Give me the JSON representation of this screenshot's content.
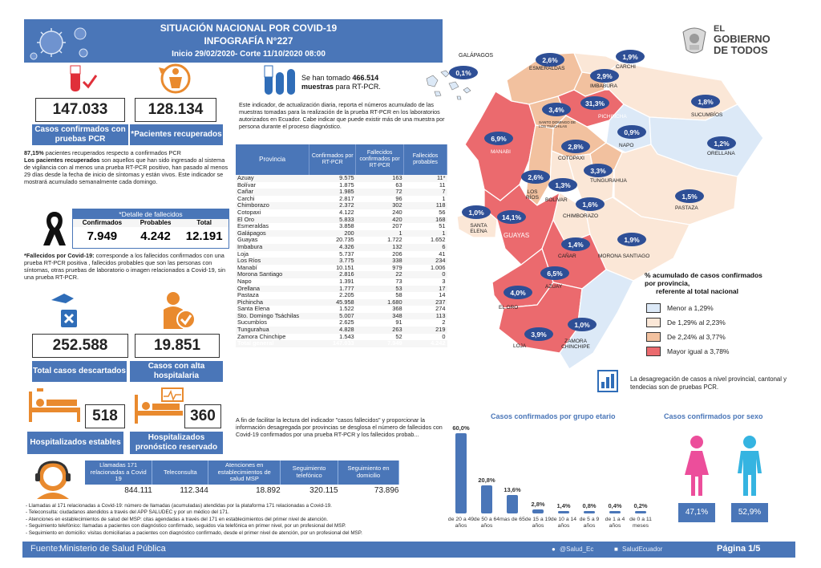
{
  "header": {
    "title": "SITUACIÓN NACIONAL POR  COVID-19",
    "subtitle": "INFOGRAFÍA N°227",
    "date_range": "Inicio 29/02/2020- Corte 11/10/2020 08:00"
  },
  "gov_logo": {
    "line1": "EL",
    "line2": "GOBIERNO",
    "line3": "DE TODOS"
  },
  "stats": {
    "confirmed": {
      "value": "147.033",
      "label": "Casos confirmados con pruebas PCR"
    },
    "recovered": {
      "value": "128.134",
      "label": "*Pacientes recuperados"
    },
    "recovered_pct_text": "87,15%",
    "recovered_pct_rest": " pacientes recuperados respecto a confirmados PCR",
    "recovered_def_bold": "Los pacientes recuperados",
    "recovered_def": " son aquellos que han sido ingresado al sistema de vigilancia con al menos una prueba RT-PCR positivo, han pasado al menos 29 días desde la fecha de inicio de síntomas y están vivos. Este indicador se mostrará acumulado semanalmente cada domingo.",
    "samples_prefix": "Se han tomado ",
    "samples_value": "466.514",
    "samples_bold2": "muestras",
    "samples_suffix": " para RT-PCR.",
    "samples_note": "Este indicador, de actualización diaria, reporta el números acumulado de las muestras tomadas para la realización de la prueba RT-PCR en los laboratorios autorizados en Ecuador. Cabe indicar que puede existir más de una muestra por persona durante el proceso diagnóstico.",
    "discarded": {
      "value": "252.588",
      "label": "Total casos descartados"
    },
    "discharged": {
      "value": "19.851",
      "label": "Casos con alta hospitalaria"
    },
    "hosp_stable": {
      "value": "518",
      "label": "Hospitalizados estables"
    },
    "hosp_reserved": {
      "value": "360",
      "label": "Hospitalizados pronóstico reservado"
    }
  },
  "deaths": {
    "title": "*Detalle de fallecidos",
    "headers": [
      "Confirmados",
      "Probables",
      "Total"
    ],
    "values": [
      "7.949",
      "4.242",
      "12.191"
    ],
    "note_bold": "*Fallecidos por Covid-19:",
    "note": " corresponde a los fallecidos confirmados con una prueba RT-PCR positiva , fallecidos probables que son las personas con síntomas, otras pruebas de laboratorio o imagen relacionados a Covid-19, sin una prueba RT-PCR."
  },
  "province_table": {
    "headers": [
      "Provincia",
      "Confirmados por RT-PCR",
      "Fallecidos confirmados por RT-PCR",
      "Fallecidos probables"
    ],
    "rows": [
      [
        "Azuay",
        "9.575",
        "163",
        "11*"
      ],
      [
        "Bolívar",
        "1.875",
        "63",
        "11"
      ],
      [
        "Cañar",
        "1.985",
        "72",
        "7"
      ],
      [
        "Carchi",
        "2.817",
        "96",
        "1"
      ],
      [
        "Chimborazo",
        "2.372",
        "302",
        "118"
      ],
      [
        "Cotopaxi",
        "4.122",
        "240",
        "56"
      ],
      [
        "El Oro",
        "5.833",
        "420",
        "168"
      ],
      [
        "Esmeraldas",
        "3.858",
        "207",
        "51"
      ],
      [
        "Galápagos",
        "200",
        "1",
        "1"
      ],
      [
        "Guayas",
        "20.735",
        "1.722",
        "1.652"
      ],
      [
        "Imbabura",
        "4.326",
        "132",
        "6"
      ],
      [
        "Loja",
        "5.737",
        "206",
        "41"
      ],
      [
        "Los Ríos",
        "3.775",
        "338",
        "234"
      ],
      [
        "Manabí",
        "10.151",
        "979",
        "1.006"
      ],
      [
        "Morona Santiago",
        "2.816",
        "22",
        "0"
      ],
      [
        "Napo",
        "1.391",
        "73",
        "3"
      ],
      [
        "Orellana",
        "1.777",
        "53",
        "17"
      ],
      [
        "Pastaza",
        "2.205",
        "58",
        "14"
      ],
      [
        "Pichincha",
        "45.958",
        "1.680",
        "237"
      ],
      [
        "Santa Elena",
        "1.522",
        "368",
        "274"
      ],
      [
        "Sto. Domingo Tsáchilas",
        "5.007",
        "348",
        "113"
      ],
      [
        "Sucumbíos",
        "2.625",
        "91",
        "2"
      ],
      [
        "Tungurahua",
        "4.828",
        "263",
        "219"
      ],
      [
        "Zamora Chinchipe",
        "1.543",
        "52",
        "0"
      ]
    ],
    "total": [
      "Total general",
      "147.033",
      "7.949",
      "4.242"
    ],
    "footnote": "A fin de facilitar la lectura del indicador \"casos fallecidos\" y proporcionar la información desagregada por provincias se desglosa el número de fallecidos con Covid-19 confirmados por una prueba RT-PCR y los fallecidos probab..."
  },
  "map": {
    "galapagos_label": "GALÁPAGOS",
    "provinces": [
      {
        "name": "ESMERALDAS",
        "pct": "2,6%"
      },
      {
        "name": "CARCHI",
        "pct": "1,9%"
      },
      {
        "name": "IMBABURA",
        "pct": "2,9%"
      },
      {
        "name": "SUCUMBÍOS",
        "pct": "1,8%"
      },
      {
        "name": "PICHINCHA",
        "pct": "31,3%"
      },
      {
        "name": "SANTO DOMINGO DE LOS TSÁCHILAS",
        "pct": "3,4%"
      },
      {
        "name": "NAPO",
        "pct": "0,9%"
      },
      {
        "name": "ORELLANA",
        "pct": "1,2%"
      },
      {
        "name": "MANABI",
        "pct": "6,9%"
      },
      {
        "name": "COTOPAXI",
        "pct": "2,8%"
      },
      {
        "name": "TUNGURAHUA",
        "pct": "3,3%"
      },
      {
        "name": "LOS RÍOS",
        "pct": "2,6%"
      },
      {
        "name": "BOLÍVAR",
        "pct": "1,3%"
      },
      {
        "name": "CHIMBORAZO",
        "pct": "1,6%"
      },
      {
        "name": "PASTAZA",
        "pct": "1,5%"
      },
      {
        "name": "SANTA ELENA",
        "pct": "1,0%"
      },
      {
        "name": "GUAYAS",
        "pct": "14,1%"
      },
      {
        "name": "CAÑAR",
        "pct": "1,4%"
      },
      {
        "name": "MORONA SANTIAGO",
        "pct": "1,9%"
      },
      {
        "name": "AZUAY",
        "pct": "6,5%"
      },
      {
        "name": "EL ORO",
        "pct": "4,0%"
      },
      {
        "name": "LOJA",
        "pct": "3,9%"
      },
      {
        "name": "ZAMORA CHINCHIPE",
        "pct": "1,0%"
      },
      {
        "name": "GALÁPAGOS",
        "pct": "0,1%"
      }
    ],
    "legend_title_1": "% acumulado de casos confirmados",
    "legend_title_2": "por provincia,",
    "legend_title_3": "referente al total nacional",
    "legend": [
      {
        "label": "Menor a 1,29%",
        "color": "#dce9f7"
      },
      {
        "label": "De 1,29% al 2,23%",
        "color": "#fbe7d7"
      },
      {
        "label": "De 2,24% al 3,77%",
        "color": "#f2c19f"
      },
      {
        "label": "Mayor igual a 3,78%",
        "color": "#eb6a6e"
      }
    ],
    "note": "La desagregación de casos a nivel provincial, cantonal y tendecias son de pruebas PCR."
  },
  "age_chart_title": "Casos confirmados por grupo etario",
  "chart_data": [
    {
      "type": "bar",
      "title": "Casos confirmados por grupo etario",
      "categories": [
        "de 20 a 49 años",
        "de 50 a 64 años",
        "mas de 65",
        "de 15 a 19 años",
        "de 10 a 14 años",
        "de 5 a 9 años",
        "de 1 a 4 años",
        "de 0 a 11 meses"
      ],
      "values": [
        60.0,
        20.8,
        13.6,
        2.8,
        1.4,
        0.8,
        0.4,
        0.2
      ],
      "value_labels": [
        "60,0%",
        "20,8%",
        "13,6%",
        "2,8%",
        "1,4%",
        "0,8%",
        "0,4%",
        "0,2%"
      ],
      "ylim": [
        0,
        60
      ]
    },
    {
      "type": "bar",
      "title": "Casos confirmados por sexo",
      "categories": [
        "Mujeres",
        "Hombres"
      ],
      "values": [
        47.1,
        52.9
      ],
      "value_labels": [
        "47,1%",
        "52,9%"
      ]
    }
  ],
  "sex_chart_title": "Casos confirmados por sexo",
  "calls_table": {
    "headers": [
      "Llamadas 171 relacionadas a Covid 19",
      "Teleconsulta",
      "Atenciones en establecimientos de salud   MSP",
      "Seguimiento telefónico",
      "Seguimiento en domicilio"
    ],
    "values": [
      "844.111",
      "112.344",
      "18.892",
      "320.115",
      "73.896"
    ]
  },
  "notes": [
    "- Llamadas al 171 relacionadas a Covid-19: número de llamadas (acumuladas) atendidas por la plataforma 171 relacionadas a Covid-19.",
    "- Teleconsulta: ciudadanos atendidos a través del APP SALUDEC y por un médico del 171.",
    "- Atenciones en establecimientos de salud del MSP:  citas agendadas a través del 171 en establecimientos del primer nivel de atención.",
    "- Seguimiento telefónico: llamadas a pacientes con diagnóstico confirmado, seguidos vía telefónica en primer nivel, por un profesional del MSP.",
    "- Seguimiento en domicilio: visitas domiciliarias a pacientes con diagnóstico confirmado, desde el primer nivel de atención, por un profesional del MSP."
  ],
  "footer": {
    "source_label": "Fuente:",
    "source": "Ministerio de Salud Pública",
    "twitter": "@Salud_Ec",
    "facebook": "SaludEcuador",
    "page": "Página 1/5"
  }
}
